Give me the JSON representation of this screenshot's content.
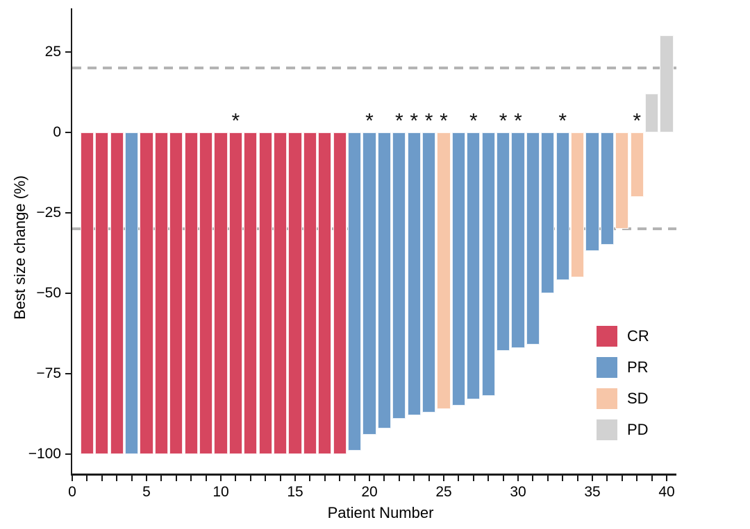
{
  "figure": {
    "x_axis_title": "Patient Number",
    "y_axis_title": "Best size change (%)",
    "asterisk_symbol": "*"
  },
  "colors": {
    "CR": "#d6465f",
    "PR": "#6d9bc9",
    "SD": "#f7c6a8",
    "PD": "#d2d2d2",
    "reference_line": "#b4b4b4",
    "axis": "#1a1a1a"
  },
  "legend": {
    "items": [
      {
        "label": "CR",
        "color": "#d6465f"
      },
      {
        "label": "PR",
        "color": "#6d9bc9"
      },
      {
        "label": "SD",
        "color": "#f7c6a8"
      },
      {
        "label": "PD",
        "color": "#d2d2d2"
      }
    ]
  },
  "chart_data": {
    "type": "bar",
    "title": "",
    "xlabel": "Patient Number",
    "ylabel": "Best size change (%)",
    "xlim": [
      -0.3,
      40.8
    ],
    "ylim": [
      -106,
      38
    ],
    "x_ticks": [
      0,
      5,
      10,
      15,
      20,
      25,
      30,
      35,
      40
    ],
    "y_ticks": [
      25,
      0,
      -25,
      -50,
      -75,
      -100
    ],
    "reference_lines": [
      20,
      -30
    ],
    "grid": false,
    "legend_position": "right-middle",
    "legend_entries": [
      "CR",
      "PR",
      "SD",
      "PD"
    ],
    "starred_patients": [
      11,
      20,
      22,
      23,
      24,
      25,
      27,
      29,
      30,
      33,
      38
    ],
    "patients": [
      {
        "id": 1,
        "value": -100,
        "response": "CR",
        "starred": false
      },
      {
        "id": 2,
        "value": -100,
        "response": "CR",
        "starred": false
      },
      {
        "id": 3,
        "value": -100,
        "response": "CR",
        "starred": false
      },
      {
        "id": 4,
        "value": -100,
        "response": "PR",
        "starred": false
      },
      {
        "id": 5,
        "value": -100,
        "response": "CR",
        "starred": false
      },
      {
        "id": 6,
        "value": -100,
        "response": "CR",
        "starred": false
      },
      {
        "id": 7,
        "value": -100,
        "response": "CR",
        "starred": false
      },
      {
        "id": 8,
        "value": -100,
        "response": "CR",
        "starred": false
      },
      {
        "id": 9,
        "value": -100,
        "response": "CR",
        "starred": false
      },
      {
        "id": 10,
        "value": -100,
        "response": "CR",
        "starred": false
      },
      {
        "id": 11,
        "value": -100,
        "response": "CR",
        "starred": true
      },
      {
        "id": 12,
        "value": -100,
        "response": "CR",
        "starred": false
      },
      {
        "id": 13,
        "value": -100,
        "response": "CR",
        "starred": false
      },
      {
        "id": 14,
        "value": -100,
        "response": "CR",
        "starred": false
      },
      {
        "id": 15,
        "value": -100,
        "response": "CR",
        "starred": false
      },
      {
        "id": 16,
        "value": -100,
        "response": "CR",
        "starred": false
      },
      {
        "id": 17,
        "value": -100,
        "response": "CR",
        "starred": false
      },
      {
        "id": 18,
        "value": -100,
        "response": "CR",
        "starred": false
      },
      {
        "id": 19,
        "value": -99,
        "response": "PR",
        "starred": false
      },
      {
        "id": 20,
        "value": -94,
        "response": "PR",
        "starred": true
      },
      {
        "id": 21,
        "value": -92,
        "response": "PR",
        "starred": false
      },
      {
        "id": 22,
        "value": -89,
        "response": "PR",
        "starred": true
      },
      {
        "id": 23,
        "value": -88,
        "response": "PR",
        "starred": true
      },
      {
        "id": 24,
        "value": -87,
        "response": "PR",
        "starred": true
      },
      {
        "id": 25,
        "value": -86,
        "response": "SD",
        "starred": true
      },
      {
        "id": 26,
        "value": -85,
        "response": "PR",
        "starred": false
      },
      {
        "id": 27,
        "value": -83,
        "response": "PR",
        "starred": true
      },
      {
        "id": 28,
        "value": -82,
        "response": "PR",
        "starred": false
      },
      {
        "id": 29,
        "value": -68,
        "response": "PR",
        "starred": true
      },
      {
        "id": 30,
        "value": -67,
        "response": "PR",
        "starred": true
      },
      {
        "id": 31,
        "value": -66,
        "response": "PR",
        "starred": false
      },
      {
        "id": 32,
        "value": -50,
        "response": "PR",
        "starred": false
      },
      {
        "id": 33,
        "value": -46,
        "response": "PR",
        "starred": true
      },
      {
        "id": 34,
        "value": -45,
        "response": "SD",
        "starred": false
      },
      {
        "id": 35,
        "value": -37,
        "response": "PR",
        "starred": false
      },
      {
        "id": 36,
        "value": -35,
        "response": "PR",
        "starred": false
      },
      {
        "id": 37,
        "value": -30,
        "response": "SD",
        "starred": false
      },
      {
        "id": 38,
        "value": -20,
        "response": "SD",
        "starred": true
      },
      {
        "id": 39,
        "value": 12,
        "response": "PD",
        "starred": false
      },
      {
        "id": 40,
        "value": 30,
        "response": "PD",
        "starred": false
      }
    ]
  }
}
